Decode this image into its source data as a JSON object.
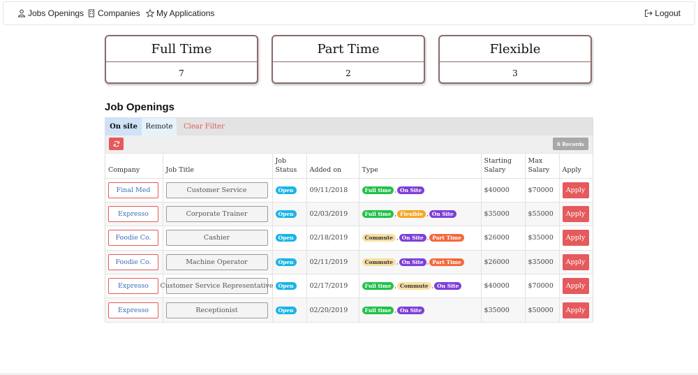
{
  "nav": {
    "jobs_label": "Jobs Openings",
    "companies_label": "Companies",
    "applications_label": "My Applications",
    "logout_label": "Logout"
  },
  "summary": [
    {
      "label": "Full Time",
      "count": "7"
    },
    {
      "label": "Part Time",
      "count": "2"
    },
    {
      "label": "Flexible",
      "count": "3"
    }
  ],
  "section_title": "Job Openings",
  "tabs": {
    "onsite": "On site",
    "remote": "Remote",
    "clear": "Clear Filter"
  },
  "records_label": "6 Records",
  "columns": [
    "Company",
    "Job Title",
    "Job Status",
    "Added on",
    "Type",
    "Starting Salary",
    "Max Salary",
    "Apply"
  ],
  "type_colors": {
    "Full time": {
      "bg": "#21c14a",
      "fg": "#ffffff"
    },
    "On Site": {
      "bg": "#7d40d8",
      "fg": "#ffffff"
    },
    "Flexible": {
      "bg": "#f5a623",
      "fg": "#ffffff"
    },
    "Commute": {
      "bg": "#f7e0a3",
      "fg": "#333333"
    },
    "Part Time": {
      "bg": "#f26a3d",
      "fg": "#ffffff"
    }
  },
  "rows": [
    {
      "company": "Final Med",
      "title": "Customer Service",
      "status": "Open",
      "added": "09/11/2018",
      "types": [
        "Full time",
        "On Site"
      ],
      "start_salary": "$40000",
      "max_salary": "$70000",
      "apply": "Apply"
    },
    {
      "company": "Expresso",
      "title": "Corporate Trainer",
      "status": "Open",
      "added": "02/03/2019",
      "types": [
        "Full time",
        "Flexible",
        "On Site"
      ],
      "start_salary": "$35000",
      "max_salary": "$55000",
      "apply": "Apply"
    },
    {
      "company": "Foodie Co.",
      "title": "Cashier",
      "status": "Open",
      "added": "02/18/2019",
      "types": [
        "Commute",
        "On Site",
        "Part Time"
      ],
      "start_salary": "$26000",
      "max_salary": "$35000",
      "apply": "Apply"
    },
    {
      "company": "Foodie Co.",
      "title": "Machine Operator",
      "status": "Open",
      "added": "02/11/2019",
      "types": [
        "Commute",
        "On Site",
        "Part Time"
      ],
      "start_salary": "$26000",
      "max_salary": "$35000",
      "apply": "Apply"
    },
    {
      "company": "Expresso",
      "title": "Customer Service Representative",
      "status": "Open",
      "added": "02/17/2019",
      "types": [
        "Full time",
        "Commute",
        "On Site"
      ],
      "start_salary": "$40000",
      "max_salary": "$70000",
      "apply": "Apply"
    },
    {
      "company": "Expresso",
      "title": "Receptionist",
      "status": "Open",
      "added": "02/20/2019",
      "types": [
        "Full time",
        "On Site"
      ],
      "start_salary": "$35000",
      "max_salary": "$50000",
      "apply": "Apply"
    }
  ]
}
